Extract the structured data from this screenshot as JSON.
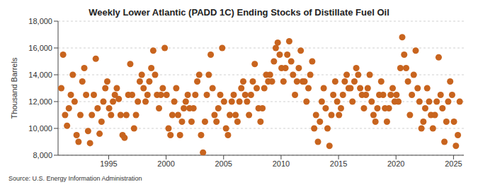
{
  "chart_data": {
    "type": "scatter",
    "title": "Weekly Lower Atlantic (PADD 1C) Ending Stocks of Distillate Fuel Oil",
    "y_label": "Thousand Barrels",
    "source": "Source: U.S. Energy Information Administration",
    "color": "#c8641e",
    "marker": "circle",
    "grid": true,
    "xlim": [
      1990.6,
      2025.9
    ],
    "xticks": [
      1995,
      2000,
      2005,
      2010,
      2015,
      2020,
      2025
    ],
    "ylim": [
      8000,
      18000
    ],
    "yticks": [
      {
        "value": 8000,
        "label": "8,000"
      },
      {
        "value": 10000,
        "label": "10,000"
      },
      {
        "value": 12000,
        "label": "12,000"
      },
      {
        "value": 14000,
        "label": "14,000"
      },
      {
        "value": 16000,
        "label": "16,000"
      },
      {
        "value": 18000,
        "label": "18,000"
      }
    ],
    "x": [
      1990.88,
      1991.04,
      1991.21,
      1991.38,
      1991.54,
      1991.71,
      1991.88,
      1992.04,
      1992.21,
      1992.38,
      1992.54,
      1992.71,
      1992.88,
      1993.04,
      1993.21,
      1993.38,
      1993.54,
      1993.71,
      1993.88,
      1994.04,
      1994.21,
      1994.38,
      1994.54,
      1994.71,
      1994.88,
      1995.04,
      1995.21,
      1995.38,
      1995.54,
      1995.71,
      1995.88,
      1996.04,
      1996.21,
      1996.38,
      1996.54,
      1996.71,
      1996.88,
      1997.04,
      1997.21,
      1997.38,
      1997.54,
      1997.71,
      1997.88,
      1998.04,
      1998.21,
      1998.38,
      1998.54,
      1998.71,
      1998.88,
      1999.04,
      1999.21,
      1999.38,
      1999.54,
      1999.71,
      1999.88,
      2000.04,
      2000.21,
      2000.38,
      2000.54,
      2000.71,
      2000.88,
      2001.04,
      2001.21,
      2001.38,
      2001.54,
      2001.71,
      2001.88,
      2002.04,
      2002.21,
      2002.38,
      2002.54,
      2002.71,
      2002.88,
      2003.04,
      2003.21,
      2003.38,
      2003.54,
      2003.71,
      2003.88,
      2004.04,
      2004.21,
      2004.38,
      2004.54,
      2004.71,
      2004.88,
      2005.04,
      2005.21,
      2005.38,
      2005.54,
      2005.71,
      2005.88,
      2006.04,
      2006.21,
      2006.38,
      2006.54,
      2006.71,
      2006.88,
      2007.04,
      2007.21,
      2007.38,
      2007.54,
      2007.71,
      2007.88,
      2008.04,
      2008.21,
      2008.38,
      2008.54,
      2008.71,
      2008.88,
      2009.04,
      2009.21,
      2009.38,
      2009.54,
      2009.71,
      2009.88,
      2010.04,
      2010.21,
      2010.38,
      2010.54,
      2010.71,
      2010.88,
      2011.04,
      2011.21,
      2011.38,
      2011.54,
      2011.71,
      2011.88,
      2012.04,
      2012.21,
      2012.38,
      2012.54,
      2012.71,
      2012.88,
      2013.04,
      2013.21,
      2013.38,
      2013.54,
      2013.71,
      2013.88,
      2014.04,
      2014.21,
      2014.38,
      2014.54,
      2014.71,
      2014.88,
      2015.04,
      2015.21,
      2015.38,
      2015.54,
      2015.71,
      2015.88,
      2016.04,
      2016.21,
      2016.38,
      2016.54,
      2016.71,
      2016.88,
      2017.04,
      2017.21,
      2017.38,
      2017.54,
      2017.71,
      2017.88,
      2018.04,
      2018.21,
      2018.38,
      2018.54,
      2018.71,
      2018.88,
      2019.04,
      2019.21,
      2019.38,
      2019.54,
      2019.71,
      2019.88,
      2020.04,
      2020.21,
      2020.38,
      2020.54,
      2020.71,
      2020.88,
      2021.04,
      2021.21,
      2021.38,
      2021.54,
      2021.71,
      2021.88,
      2022.04,
      2022.21,
      2022.38,
      2022.54,
      2022.71,
      2022.88,
      2023.04,
      2023.21,
      2023.38,
      2023.54,
      2023.71,
      2023.88,
      2024.04,
      2024.21,
      2024.38,
      2024.54,
      2024.71,
      2024.88,
      2025.04,
      2025.21,
      2025.38,
      2025.54
    ],
    "values": [
      13000,
      15500,
      11000,
      10200,
      11500,
      12500,
      14000,
      12000,
      9500,
      9000,
      11000,
      13500,
      14500,
      12500,
      9800,
      8900,
      11000,
      12500,
      15200,
      11500,
      9600,
      10500,
      12000,
      13000,
      13500,
      11500,
      11000,
      12000,
      12500,
      13000,
      12200,
      11000,
      9500,
      9300,
      11000,
      12500,
      14800,
      12500,
      10000,
      11000,
      12000,
      13500,
      14000,
      13000,
      12000,
      12500,
      13500,
      14500,
      15800,
      14000,
      12500,
      11500,
      12500,
      13000,
      16000,
      12500,
      10000,
      9500,
      11000,
      12000,
      13000,
      11000,
      9500,
      10500,
      11500,
      12000,
      12500,
      11500,
      10500,
      11500,
      12500,
      13500,
      14000,
      9500,
      8200,
      10500,
      12500,
      14000,
      15500,
      13000,
      11000,
      10500,
      11500,
      12500,
      16000,
      12000,
      10000,
      9500,
      11000,
      12000,
      12500,
      11000,
      10500,
      12000,
      13000,
      13500,
      12500,
      12000,
      11000,
      12500,
      13500,
      14800,
      13000,
      11500,
      10500,
      11500,
      13000,
      14000,
      13500,
      14000,
      13500,
      15000,
      16000,
      16400,
      15500,
      14500,
      13500,
      14500,
      15500,
      16500,
      15000,
      14000,
      12500,
      13500,
      14500,
      15800,
      13500,
      13500,
      12000,
      13000,
      14000,
      15000,
      10000,
      11000,
      9000,
      10500,
      12000,
      13000,
      11500,
      10000,
      8700,
      11000,
      12500,
      13500,
      12000,
      11000,
      11500,
      12500,
      13500,
      14000,
      13000,
      13000,
      12000,
      13500,
      14500,
      14000,
      13000,
      12500,
      11500,
      12500,
      13000,
      14000,
      12000,
      11000,
      10500,
      11500,
      12500,
      13500,
      12500,
      11500,
      10500,
      11500,
      12500,
      13000,
      12000,
      12500,
      12000,
      14500,
      16800,
      15500,
      14500,
      13500,
      11000,
      12500,
      14000,
      15800,
      13000,
      12000,
      10000,
      10500,
      11500,
      13000,
      12000,
      11000,
      10000,
      11000,
      12000,
      15300,
      12500,
      11500,
      9000,
      10500,
      12000,
      13500,
      12500,
      10500,
      8700,
      9500,
      12000
    ]
  }
}
